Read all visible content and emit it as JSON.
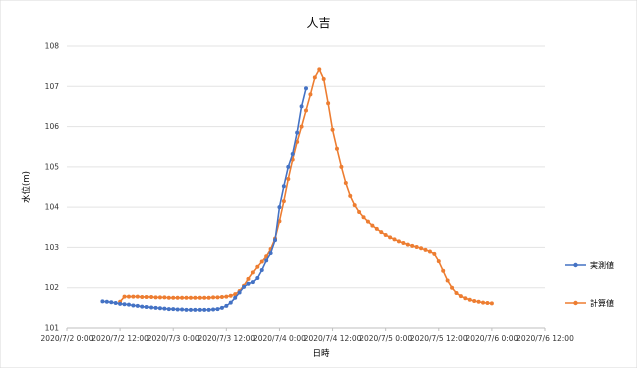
{
  "chart_data": {
    "type": "line",
    "title": "人吉",
    "xlabel": "日時",
    "ylabel": "水位(m)",
    "ylim": [
      101,
      108
    ],
    "yticks": [
      "101",
      "102",
      "103",
      "104",
      "105",
      "106",
      "107",
      "108"
    ],
    "xlim": [
      "2020-07-02 00:00",
      "2020-07-06 12:00"
    ],
    "xticks": [
      "2020/7/2 0:00",
      "2020/7/2 12:00",
      "2020/7/3 0:00",
      "2020/7/3 12:00",
      "2020/7/4 0:00",
      "2020/7/4 12:00",
      "2020/7/5 0:00",
      "2020/7/5 12:00",
      "2020/7/6 0:00",
      "2020/7/6 12:00"
    ],
    "grid": "horizontal",
    "legend_position": "right",
    "series": [
      {
        "name": "実測値",
        "color": "#4472C4",
        "points": [
          [
            "2020-07-02 08:00",
            101.66
          ],
          [
            "2020-07-02 09:00",
            101.65
          ],
          [
            "2020-07-02 10:00",
            101.64
          ],
          [
            "2020-07-02 11:00",
            101.62
          ],
          [
            "2020-07-02 12:00",
            101.6
          ],
          [
            "2020-07-02 13:00",
            101.59
          ],
          [
            "2020-07-02 14:00",
            101.58
          ],
          [
            "2020-07-02 15:00",
            101.56
          ],
          [
            "2020-07-02 16:00",
            101.55
          ],
          [
            "2020-07-02 17:00",
            101.53
          ],
          [
            "2020-07-02 18:00",
            101.52
          ],
          [
            "2020-07-02 19:00",
            101.51
          ],
          [
            "2020-07-02 20:00",
            101.5
          ],
          [
            "2020-07-02 21:00",
            101.49
          ],
          [
            "2020-07-02 22:00",
            101.48
          ],
          [
            "2020-07-02 23:00",
            101.47
          ],
          [
            "2020-07-03 00:00",
            101.47
          ],
          [
            "2020-07-03 01:00",
            101.46
          ],
          [
            "2020-07-03 02:00",
            101.46
          ],
          [
            "2020-07-03 03:00",
            101.45
          ],
          [
            "2020-07-03 04:00",
            101.45
          ],
          [
            "2020-07-03 05:00",
            101.45
          ],
          [
            "2020-07-03 06:00",
            101.45
          ],
          [
            "2020-07-03 07:00",
            101.45
          ],
          [
            "2020-07-03 08:00",
            101.45
          ],
          [
            "2020-07-03 09:00",
            101.46
          ],
          [
            "2020-07-03 10:00",
            101.47
          ],
          [
            "2020-07-03 11:00",
            101.5
          ],
          [
            "2020-07-03 12:00",
            101.55
          ],
          [
            "2020-07-03 13:00",
            101.63
          ],
          [
            "2020-07-03 14:00",
            101.75
          ],
          [
            "2020-07-03 15:00",
            101.88
          ],
          [
            "2020-07-03 16:00",
            102.02
          ],
          [
            "2020-07-03 17:00",
            102.1
          ],
          [
            "2020-07-03 18:00",
            102.14
          ],
          [
            "2020-07-03 19:00",
            102.24
          ],
          [
            "2020-07-03 20:00",
            102.44
          ],
          [
            "2020-07-03 21:00",
            102.68
          ],
          [
            "2020-07-03 22:00",
            102.86
          ],
          [
            "2020-07-03 23:00",
            103.18
          ],
          [
            "2020-07-04 00:00",
            104.0
          ],
          [
            "2020-07-04 01:00",
            104.52
          ],
          [
            "2020-07-04 02:00",
            105.0
          ],
          [
            "2020-07-04 03:00",
            105.32
          ],
          [
            "2020-07-04 04:00",
            105.85
          ],
          [
            "2020-07-04 05:00",
            106.5
          ],
          [
            "2020-07-04 06:00",
            106.95
          ]
        ]
      },
      {
        "name": "計算値",
        "color": "#ED7D31",
        "points": [
          [
            "2020-07-02 12:00",
            101.65
          ],
          [
            "2020-07-02 13:00",
            101.78
          ],
          [
            "2020-07-02 14:00",
            101.78
          ],
          [
            "2020-07-02 15:00",
            101.78
          ],
          [
            "2020-07-02 16:00",
            101.78
          ],
          [
            "2020-07-02 17:00",
            101.77
          ],
          [
            "2020-07-02 18:00",
            101.77
          ],
          [
            "2020-07-02 19:00",
            101.77
          ],
          [
            "2020-07-02 20:00",
            101.76
          ],
          [
            "2020-07-02 21:00",
            101.76
          ],
          [
            "2020-07-02 22:00",
            101.76
          ],
          [
            "2020-07-02 23:00",
            101.75
          ],
          [
            "2020-07-03 00:00",
            101.75
          ],
          [
            "2020-07-03 01:00",
            101.75
          ],
          [
            "2020-07-03 02:00",
            101.75
          ],
          [
            "2020-07-03 03:00",
            101.75
          ],
          [
            "2020-07-03 04:00",
            101.75
          ],
          [
            "2020-07-03 05:00",
            101.75
          ],
          [
            "2020-07-03 06:00",
            101.75
          ],
          [
            "2020-07-03 07:00",
            101.75
          ],
          [
            "2020-07-03 08:00",
            101.75
          ],
          [
            "2020-07-03 09:00",
            101.76
          ],
          [
            "2020-07-03 10:00",
            101.76
          ],
          [
            "2020-07-03 11:00",
            101.77
          ],
          [
            "2020-07-03 12:00",
            101.78
          ],
          [
            "2020-07-03 13:00",
            101.8
          ],
          [
            "2020-07-03 14:00",
            101.84
          ],
          [
            "2020-07-03 15:00",
            101.92
          ],
          [
            "2020-07-03 16:00",
            102.05
          ],
          [
            "2020-07-03 17:00",
            102.22
          ],
          [
            "2020-07-03 18:00",
            102.38
          ],
          [
            "2020-07-03 19:00",
            102.52
          ],
          [
            "2020-07-03 20:00",
            102.65
          ],
          [
            "2020-07-03 21:00",
            102.78
          ],
          [
            "2020-07-03 22:00",
            102.96
          ],
          [
            "2020-07-03 23:00",
            103.22
          ],
          [
            "2020-07-04 00:00",
            103.65
          ],
          [
            "2020-07-04 01:00",
            104.15
          ],
          [
            "2020-07-04 02:00",
            104.7
          ],
          [
            "2020-07-04 03:00",
            105.18
          ],
          [
            "2020-07-04 04:00",
            105.62
          ],
          [
            "2020-07-04 05:00",
            106.0
          ],
          [
            "2020-07-04 06:00",
            106.4
          ],
          [
            "2020-07-04 07:00",
            106.8
          ],
          [
            "2020-07-04 08:00",
            107.22
          ],
          [
            "2020-07-04 09:00",
            107.42
          ],
          [
            "2020-07-04 10:00",
            107.18
          ],
          [
            "2020-07-04 11:00",
            106.58
          ],
          [
            "2020-07-04 12:00",
            105.92
          ],
          [
            "2020-07-04 13:00",
            105.45
          ],
          [
            "2020-07-04 14:00",
            105.0
          ],
          [
            "2020-07-04 15:00",
            104.6
          ],
          [
            "2020-07-04 16:00",
            104.28
          ],
          [
            "2020-07-04 17:00",
            104.05
          ],
          [
            "2020-07-04 18:00",
            103.88
          ],
          [
            "2020-07-04 19:00",
            103.75
          ],
          [
            "2020-07-04 20:00",
            103.64
          ],
          [
            "2020-07-04 21:00",
            103.54
          ],
          [
            "2020-07-04 22:00",
            103.46
          ],
          [
            "2020-07-04 23:00",
            103.38
          ],
          [
            "2020-07-05 00:00",
            103.31
          ],
          [
            "2020-07-05 01:00",
            103.25
          ],
          [
            "2020-07-05 02:00",
            103.2
          ],
          [
            "2020-07-05 03:00",
            103.15
          ],
          [
            "2020-07-05 04:00",
            103.11
          ],
          [
            "2020-07-05 05:00",
            103.07
          ],
          [
            "2020-07-05 06:00",
            103.04
          ],
          [
            "2020-07-05 07:00",
            103.01
          ],
          [
            "2020-07-05 08:00",
            102.98
          ],
          [
            "2020-07-05 09:00",
            102.94
          ],
          [
            "2020-07-05 10:00",
            102.9
          ],
          [
            "2020-07-05 11:00",
            102.84
          ],
          [
            "2020-07-05 12:00",
            102.66
          ],
          [
            "2020-07-05 13:00",
            102.42
          ],
          [
            "2020-07-05 14:00",
            102.18
          ],
          [
            "2020-07-05 15:00",
            102.0
          ],
          [
            "2020-07-05 16:00",
            101.87
          ],
          [
            "2020-07-05 17:00",
            101.79
          ],
          [
            "2020-07-05 18:00",
            101.74
          ],
          [
            "2020-07-05 19:00",
            101.7
          ],
          [
            "2020-07-05 20:00",
            101.67
          ],
          [
            "2020-07-05 21:00",
            101.65
          ],
          [
            "2020-07-05 22:00",
            101.63
          ],
          [
            "2020-07-05 23:00",
            101.62
          ],
          [
            "2020-07-06 00:00",
            101.61
          ]
        ]
      }
    ]
  }
}
